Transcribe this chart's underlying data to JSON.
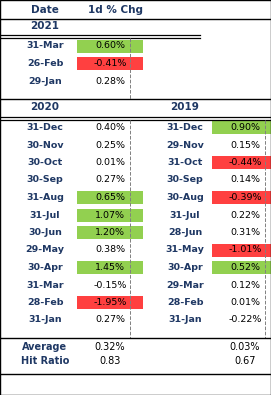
{
  "header_date": "Date",
  "header_val": "1d % Chg",
  "year2021_label": "2021",
  "year2020_label": "2020",
  "year2019_label": "2019",
  "data_2021": [
    {
      "date": "31-Mar",
      "val": "0.60%",
      "color": "green"
    },
    {
      "date": "26-Feb",
      "val": "-0.41%",
      "color": "red"
    },
    {
      "date": "29-Jan",
      "val": "0.28%",
      "color": "none"
    }
  ],
  "data_2020": [
    {
      "date": "31-Dec",
      "val": "0.40%",
      "color": "none"
    },
    {
      "date": "30-Nov",
      "val": "0.25%",
      "color": "none"
    },
    {
      "date": "30-Oct",
      "val": "0.01%",
      "color": "none"
    },
    {
      "date": "30-Sep",
      "val": "0.27%",
      "color": "none"
    },
    {
      "date": "31-Aug",
      "val": "0.65%",
      "color": "green"
    },
    {
      "date": "31-Jul",
      "val": "1.07%",
      "color": "green"
    },
    {
      "date": "30-Jun",
      "val": "1.20%",
      "color": "green"
    },
    {
      "date": "29-May",
      "val": "0.38%",
      "color": "none"
    },
    {
      "date": "30-Apr",
      "val": "1.45%",
      "color": "green"
    },
    {
      "date": "31-Mar",
      "val": "-0.15%",
      "color": "none"
    },
    {
      "date": "28-Feb",
      "val": "-1.95%",
      "color": "red"
    },
    {
      "date": "31-Jan",
      "val": "0.27%",
      "color": "none"
    }
  ],
  "data_2019": [
    {
      "date": "31-Dec",
      "val": "0.90%",
      "color": "green"
    },
    {
      "date": "29-Nov",
      "val": "0.15%",
      "color": "none"
    },
    {
      "date": "31-Oct",
      "val": "-0.44%",
      "color": "red"
    },
    {
      "date": "30-Sep",
      "val": "0.14%",
      "color": "none"
    },
    {
      "date": "30-Aug",
      "val": "-0.39%",
      "color": "red"
    },
    {
      "date": "31-Jul",
      "val": "0.22%",
      "color": "none"
    },
    {
      "date": "28-Jun",
      "val": "0.31%",
      "color": "none"
    },
    {
      "date": "31-May",
      "val": "-1.01%",
      "color": "red"
    },
    {
      "date": "30-Apr",
      "val": "0.52%",
      "color": "green"
    },
    {
      "date": "29-Mar",
      "val": "0.12%",
      "color": "none"
    },
    {
      "date": "28-Feb",
      "val": "0.01%",
      "color": "none"
    },
    {
      "date": "31-Jan",
      "val": "-0.22%",
      "color": "none"
    }
  ],
  "avg_2020": "0.32%",
  "avg_2019": "0.03%",
  "hit_2020": "0.83",
  "hit_2019": "0.67",
  "bg_color": "#ffffff",
  "text_color": "#1f3864",
  "green_bg": "#92d050",
  "red_bg": "#ff4040",
  "dashed_color": "#808080",
  "line_color": "#000000"
}
